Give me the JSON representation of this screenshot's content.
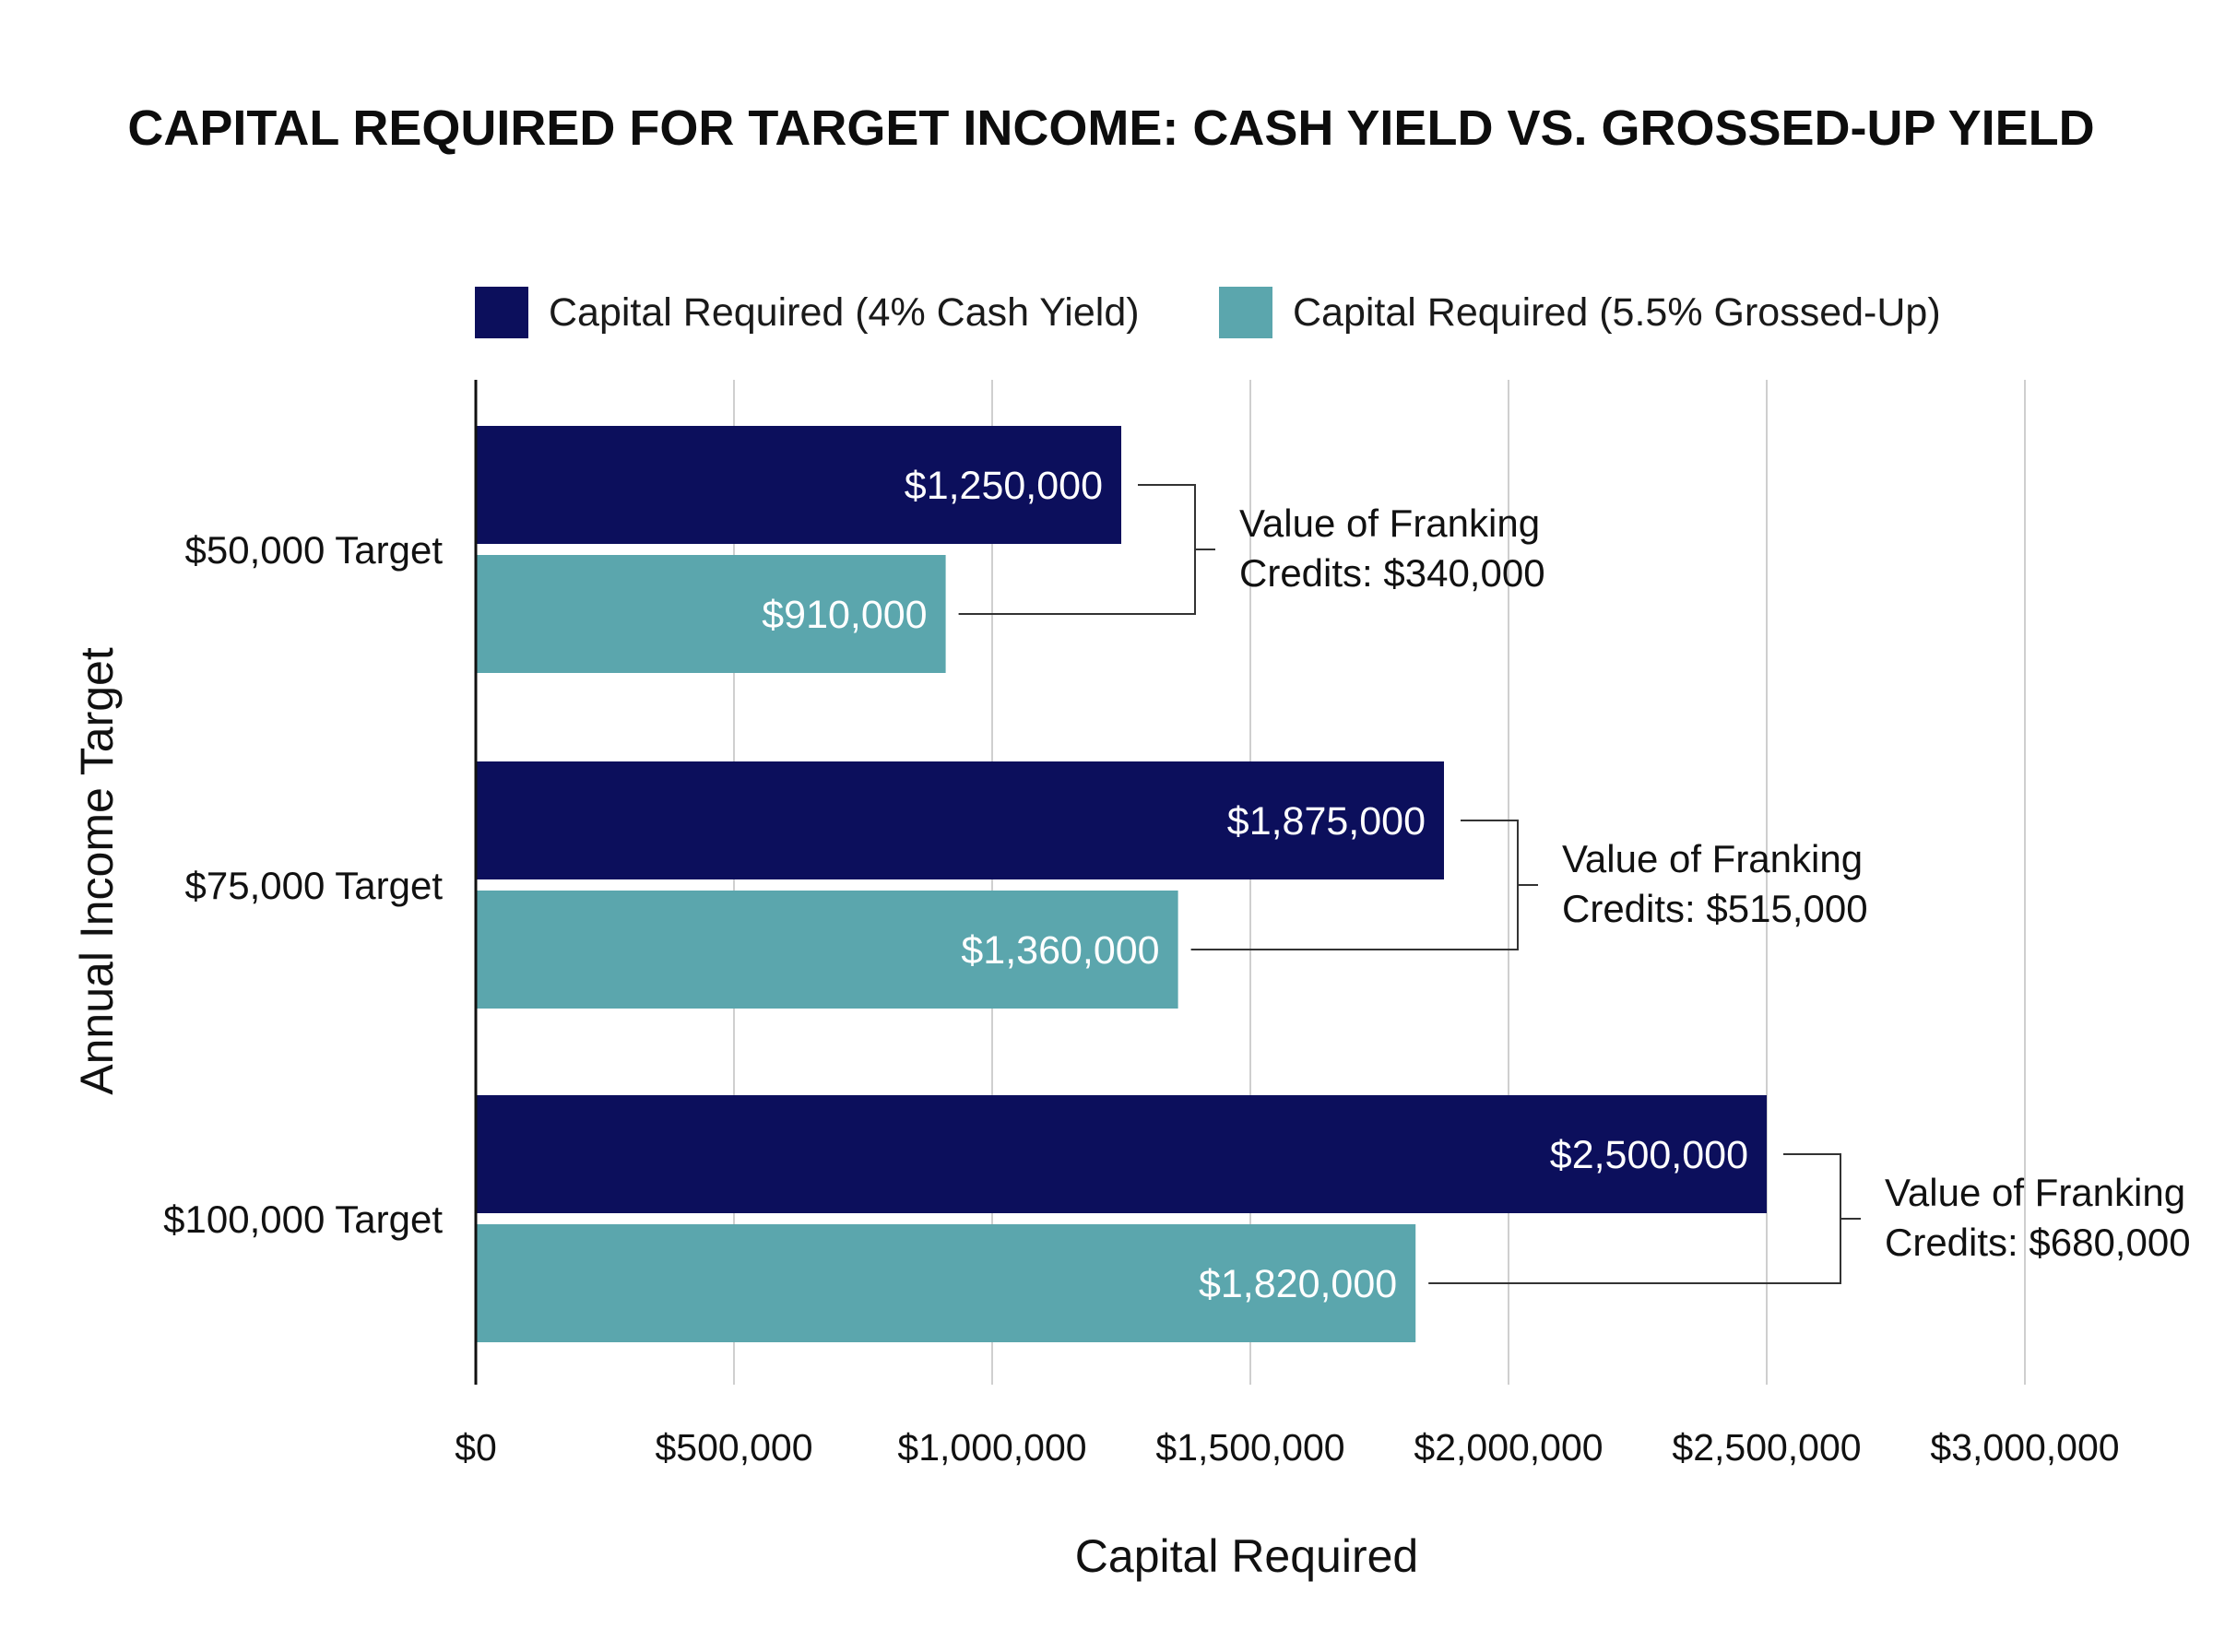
{
  "chart_data": {
    "type": "bar",
    "orientation": "horizontal",
    "title": "CAPITAL REQUIRED FOR TARGET INCOME: CASH YIELD VS. GROSSED-UP YIELD",
    "xlabel": "Capital Required",
    "ylabel": "Annual Income Target",
    "categories": [
      "$50,000 Target",
      "$75,000 Target",
      "$100,000 Target"
    ],
    "series": [
      {
        "name": "Capital Required (4% Cash Yield)",
        "color": "#0c0f5c",
        "values": [
          1250000,
          1875000,
          2500000
        ],
        "labels": [
          "$1,250,000",
          "$1,875,000",
          "$2,500,000"
        ]
      },
      {
        "name": "Capital Required (5.5% Grossed-Up)",
        "color": "#5ba6ad",
        "values": [
          910000,
          1360000,
          1820000
        ],
        "labels": [
          "$910,000",
          "$1,360,000",
          "$1,820,000"
        ]
      }
    ],
    "annotations": [
      {
        "line1": "Value of Franking",
        "line2": "Credits: $340,000"
      },
      {
        "line1": "Value of Franking",
        "line2": "Credits: $515,000"
      },
      {
        "line1": "Value of Franking",
        "line2": "Credits: $680,000"
      }
    ],
    "xlim": [
      0,
      3000000
    ],
    "xticks": [
      0,
      500000,
      1000000,
      1500000,
      2000000,
      2500000,
      3000000
    ],
    "xtick_labels": [
      "$0",
      "$500,000",
      "$1,000,000",
      "$1,500,000",
      "$2,000,000",
      "$2,500,000",
      "$3,000,000"
    ],
    "grid": true,
    "legend_position": "top"
  }
}
